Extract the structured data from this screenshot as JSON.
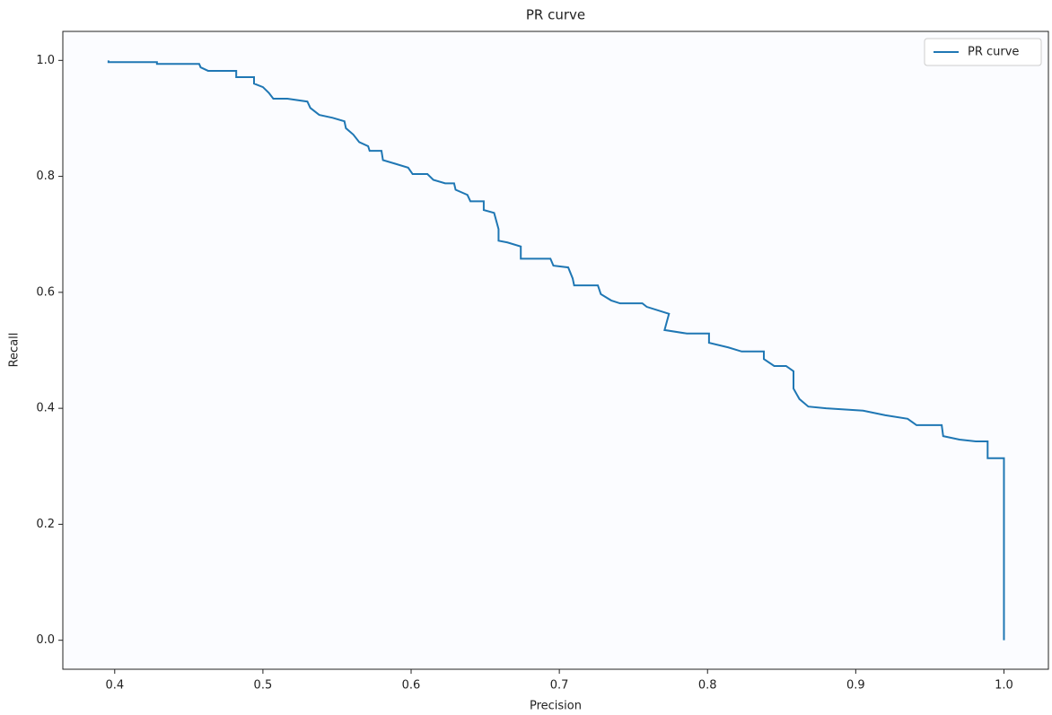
{
  "chart_data": {
    "type": "line",
    "title": "PR curve",
    "x_label": "Precision",
    "y_label": "Recall",
    "x": [
      0.3958,
      0.3958,
      0.4285,
      0.4285,
      0.457,
      0.458,
      0.463,
      0.482,
      0.482,
      0.494,
      0.494,
      0.5,
      0.504,
      0.507,
      0.5165,
      0.53,
      0.532,
      0.538,
      0.547,
      0.555,
      0.556,
      0.561,
      0.565,
      0.571,
      0.572,
      0.58,
      0.581,
      0.589,
      0.598,
      0.601,
      0.611,
      0.615,
      0.623,
      0.629,
      0.63,
      0.638,
      0.64,
      0.649,
      0.649,
      0.656,
      0.659,
      0.659,
      0.665,
      0.674,
      0.674,
      0.694,
      0.696,
      0.706,
      0.709,
      0.71,
      0.726,
      0.728,
      0.735,
      0.741,
      0.756,
      0.759,
      0.774,
      0.771,
      0.786,
      0.801,
      0.801,
      0.814,
      0.823,
      0.838,
      0.838,
      0.845,
      0.853,
      0.858,
      0.858,
      0.862,
      0.868,
      0.88,
      0.905,
      0.92,
      0.935,
      0.941,
      0.958,
      0.959,
      0.97,
      0.981,
      0.989,
      0.989,
      1.0,
      1.0
    ],
    "series": [
      {
        "name": "PR curve",
        "color": "#1f77b4",
        "values": [
          1.0,
          0.997,
          0.997,
          0.994,
          0.994,
          0.988,
          0.982,
          0.982,
          0.971,
          0.971,
          0.96,
          0.954,
          0.944,
          0.934,
          0.934,
          0.929,
          0.918,
          0.906,
          0.901,
          0.895,
          0.883,
          0.872,
          0.859,
          0.852,
          0.844,
          0.844,
          0.828,
          0.822,
          0.815,
          0.804,
          0.804,
          0.794,
          0.788,
          0.788,
          0.777,
          0.768,
          0.757,
          0.757,
          0.742,
          0.737,
          0.709,
          0.689,
          0.686,
          0.679,
          0.658,
          0.658,
          0.646,
          0.643,
          0.624,
          0.612,
          0.612,
          0.597,
          0.586,
          0.581,
          0.581,
          0.575,
          0.563,
          0.535,
          0.529,
          0.529,
          0.513,
          0.505,
          0.498,
          0.498,
          0.485,
          0.473,
          0.473,
          0.464,
          0.434,
          0.416,
          0.403,
          0.4,
          0.396,
          0.388,
          0.382,
          0.371,
          0.371,
          0.352,
          0.346,
          0.343,
          0.343,
          0.314,
          0.314,
          0.0
        ]
      }
    ],
    "xlim": [
      0.365,
      1.03
    ],
    "ylim": [
      -0.05,
      1.05
    ],
    "xticks": [
      0.4,
      0.5,
      0.6,
      0.7,
      0.8,
      0.9,
      {
        "value": 1,
        "label": "1.0"
      }
    ],
    "yticks": [
      {
        "value": 0,
        "label": "0.0"
      },
      0.2,
      0.4,
      0.6,
      0.8,
      {
        "value": 1,
        "label": "1.0"
      }
    ],
    "legend": "upper right",
    "grid": false
  }
}
